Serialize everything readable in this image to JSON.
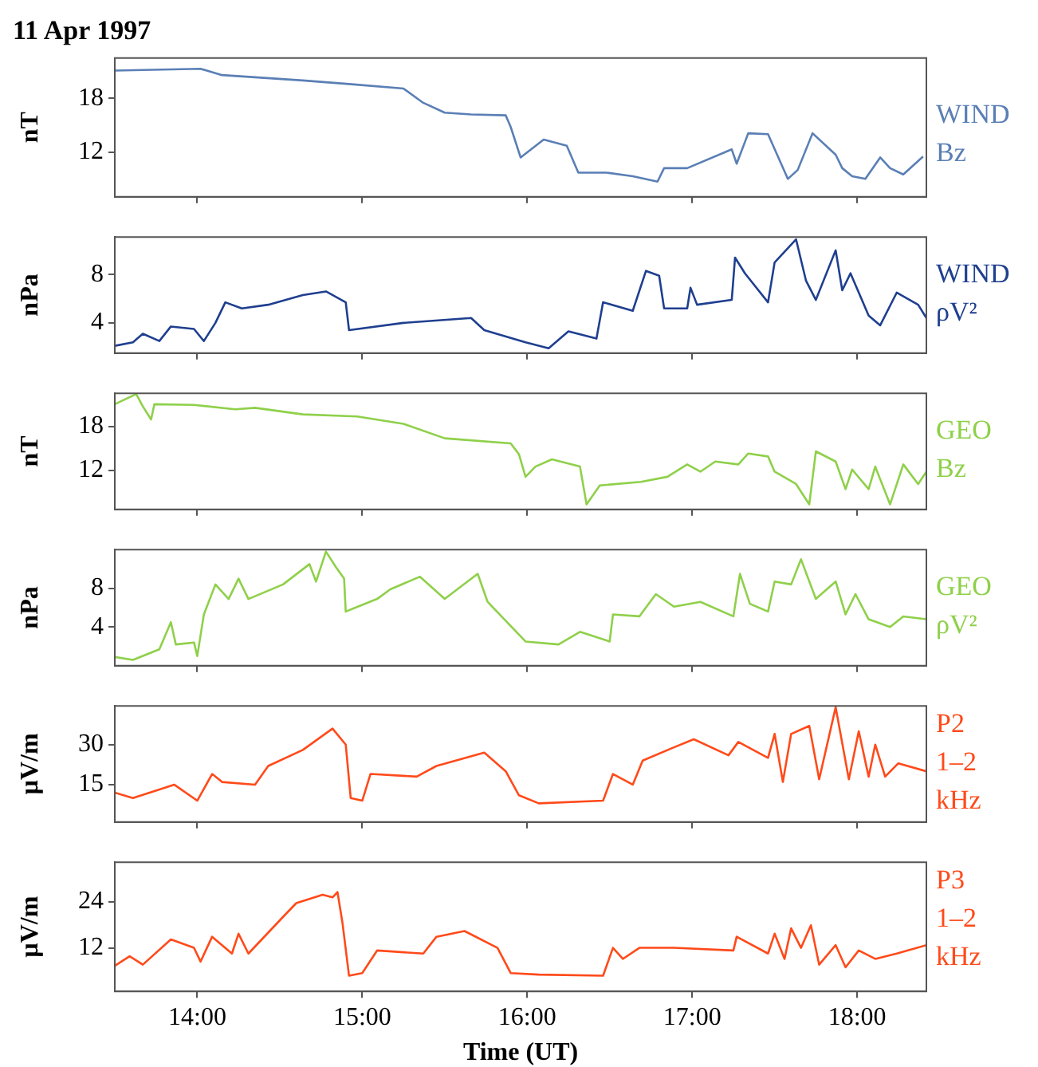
{
  "chart_data": [
    {
      "type": "line",
      "title": "11 Apr 1997",
      "ylabel": "nT",
      "legend": "right",
      "tick_labels": "y",
      "xlim": [
        13.5,
        18.42
      ],
      "xticks": [
        {
          "value": 14,
          "label": null
        },
        {
          "value": 15,
          "label": null
        },
        {
          "value": 16,
          "label": null
        },
        {
          "value": 17,
          "label": null
        },
        {
          "value": 18,
          "label": null
        }
      ],
      "ylim": [
        7,
        22.5
      ],
      "yticks": [
        12,
        18
      ],
      "x": [
        13.5,
        14.02,
        14.15,
        14.64,
        14.92,
        15.25,
        15.37,
        15.5,
        15.66,
        15.87,
        15.9,
        15.96,
        16.1,
        16.24,
        16.31,
        16.48,
        16.64,
        16.79,
        16.83,
        16.97,
        17.24,
        17.27,
        17.34,
        17.46,
        17.58,
        17.64,
        17.73,
        17.87,
        17.91,
        17.97,
        18.05,
        18.14,
        18.2,
        18.28,
        18.4
      ],
      "series": [
        {
          "name": "WIND Bz",
          "color": "#5a7fb5",
          "values": [
            21.1,
            21.3,
            20.6,
            20.0,
            19.6,
            19.1,
            17.5,
            16.4,
            16.2,
            16.1,
            14.8,
            11.4,
            13.4,
            12.7,
            9.7,
            9.7,
            9.3,
            8.7,
            10.2,
            10.2,
            12.3,
            10.7,
            14.1,
            14.0,
            9.0,
            10.0,
            14.1,
            11.7,
            10.2,
            9.3,
            9.0,
            11.4,
            10.2,
            9.5,
            11.5
          ]
        }
      ]
    },
    {
      "type": "line",
      "ylabel": "nPa",
      "legend": "right",
      "tick_labels": "y",
      "xlim": [
        13.5,
        18.42
      ],
      "xticks": [
        {
          "value": 14,
          "label": null
        },
        {
          "value": 15,
          "label": null
        },
        {
          "value": 16,
          "label": null
        },
        {
          "value": 17,
          "label": null
        },
        {
          "value": 18,
          "label": null
        }
      ],
      "ylim": [
        1.5,
        11.1
      ],
      "yticks": [
        4,
        8
      ],
      "x": [
        13.5,
        13.61,
        13.67,
        13.77,
        13.84,
        13.98,
        14.04,
        14.11,
        14.17,
        14.27,
        14.43,
        14.64,
        14.78,
        14.9,
        14.92,
        15.25,
        15.66,
        15.74,
        15.99,
        16.13,
        16.25,
        16.42,
        16.46,
        16.64,
        16.72,
        16.8,
        16.83,
        16.97,
        16.99,
        17.03,
        17.24,
        17.26,
        17.32,
        17.46,
        17.5,
        17.63,
        17.69,
        17.75,
        17.87,
        17.91,
        17.96,
        18.07,
        18.14,
        18.24,
        18.37,
        18.42
      ],
      "series": [
        {
          "name": "WIND ρV²",
          "color": "#1f3f8f",
          "values": [
            2.1,
            2.4,
            3.1,
            2.5,
            3.7,
            3.5,
            2.5,
            4.0,
            5.7,
            5.2,
            5.5,
            6.3,
            6.6,
            5.7,
            3.4,
            4.0,
            4.4,
            3.4,
            2.4,
            1.9,
            3.3,
            2.7,
            5.7,
            5.0,
            8.3,
            7.9,
            5.2,
            5.2,
            6.9,
            5.5,
            5.9,
            9.4,
            8.1,
            5.7,
            9.0,
            10.9,
            7.5,
            5.9,
            10.0,
            6.7,
            8.1,
            4.6,
            3.8,
            6.5,
            5.5,
            4.4
          ]
        }
      ]
    },
    {
      "type": "line",
      "ylabel": "nT",
      "legend": "right",
      "tick_labels": "y",
      "xlim": [
        13.5,
        18.42
      ],
      "xticks": [
        {
          "value": 14,
          "label": null
        },
        {
          "value": 15,
          "label": null
        },
        {
          "value": 16,
          "label": null
        },
        {
          "value": 17,
          "label": null
        },
        {
          "value": 18,
          "label": null
        }
      ],
      "ylim": [
        6.6,
        22.6
      ],
      "yticks": [
        12,
        18
      ],
      "x": [
        13.5,
        13.63,
        13.67,
        13.72,
        13.74,
        13.98,
        14.23,
        14.35,
        14.64,
        14.97,
        15.25,
        15.5,
        15.9,
        15.95,
        15.99,
        16.05,
        16.15,
        16.32,
        16.36,
        16.44,
        16.69,
        16.85,
        16.97,
        17.05,
        17.14,
        17.28,
        17.34,
        17.46,
        17.5,
        17.63,
        17.71,
        17.75,
        17.87,
        17.93,
        17.97,
        18.07,
        18.11,
        18.2,
        18.28,
        18.37,
        18.42
      ],
      "series": [
        {
          "name": "GEO Bz",
          "color": "#8fd04a",
          "values": [
            21.1,
            22.5,
            20.8,
            19.0,
            21.1,
            21.0,
            20.4,
            20.6,
            19.7,
            19.4,
            18.4,
            16.4,
            15.7,
            14.2,
            11.1,
            12.5,
            13.5,
            12.5,
            7.3,
            9.9,
            10.4,
            11.1,
            12.8,
            11.8,
            13.2,
            12.8,
            14.3,
            13.9,
            11.8,
            10.1,
            7.3,
            14.6,
            13.2,
            9.4,
            12.1,
            9.4,
            12.5,
            7.3,
            12.8,
            10.1,
            11.8
          ]
        }
      ]
    },
    {
      "type": "line",
      "ylabel": "nPa",
      "legend": "right",
      "tick_labels": "y",
      "xlim": [
        13.5,
        18.42
      ],
      "xticks": [
        {
          "value": 14,
          "label": null
        },
        {
          "value": 15,
          "label": null
        },
        {
          "value": 16,
          "label": null
        },
        {
          "value": 17,
          "label": null
        },
        {
          "value": 18,
          "label": null
        }
      ],
      "ylim": [
        0,
        12
      ],
      "yticks": [
        4,
        8
      ],
      "x": [
        13.5,
        13.61,
        13.77,
        13.84,
        13.87,
        13.98,
        14.0,
        14.04,
        14.11,
        14.19,
        14.25,
        14.31,
        14.52,
        14.68,
        14.72,
        14.78,
        14.84,
        14.89,
        14.9,
        15.09,
        15.17,
        15.35,
        15.5,
        15.7,
        15.76,
        15.99,
        16.19,
        16.32,
        16.5,
        16.52,
        16.68,
        16.78,
        16.89,
        17.05,
        17.25,
        17.29,
        17.35,
        17.46,
        17.5,
        17.6,
        17.66,
        17.75,
        17.87,
        17.93,
        17.99,
        18.07,
        18.2,
        18.28,
        18.42
      ],
      "series": [
        {
          "name": "GEO ρV²",
          "color": "#8fd04a",
          "values": [
            0.9,
            0.6,
            1.7,
            4.5,
            2.2,
            2.4,
            1.0,
            5.3,
            8.4,
            6.9,
            9.0,
            6.9,
            8.4,
            10.5,
            8.7,
            11.8,
            10.2,
            9.0,
            5.6,
            6.9,
            7.9,
            9.2,
            6.9,
            9.5,
            6.6,
            2.5,
            2.2,
            3.5,
            2.5,
            5.3,
            5.1,
            7.4,
            6.1,
            6.6,
            5.1,
            9.5,
            6.4,
            5.6,
            8.7,
            8.4,
            11.0,
            6.9,
            8.7,
            5.3,
            7.4,
            4.8,
            4.0,
            5.1,
            4.8
          ]
        }
      ]
    },
    {
      "type": "line",
      "ylabel": "µV/m",
      "legend": "right",
      "tick_labels": "y",
      "xlim": [
        13.5,
        18.42
      ],
      "xticks": [
        {
          "value": 14,
          "label": null
        },
        {
          "value": 15,
          "label": null
        },
        {
          "value": 16,
          "label": null
        },
        {
          "value": 17,
          "label": null
        },
        {
          "value": 18,
          "label": null
        }
      ],
      "ylim": [
        1,
        44.5
      ],
      "yticks": [
        15,
        30
      ],
      "x": [
        13.5,
        13.61,
        13.86,
        14.0,
        14.09,
        14.15,
        14.35,
        14.43,
        14.64,
        14.82,
        14.9,
        14.93,
        15.0,
        15.05,
        15.33,
        15.45,
        15.74,
        15.87,
        15.95,
        16.07,
        16.46,
        16.52,
        16.64,
        16.7,
        16.89,
        17.01,
        17.22,
        17.28,
        17.46,
        17.5,
        17.55,
        17.6,
        17.71,
        17.77,
        17.87,
        17.95,
        18.01,
        18.07,
        18.11,
        18.17,
        18.25,
        18.42
      ],
      "series": [
        {
          "name": "P2 1–2 kHz",
          "color": "#ff4a1a",
          "values": [
            12,
            10,
            15,
            9,
            19,
            16,
            15,
            22,
            28,
            36,
            30,
            10,
            9,
            19,
            18,
            22,
            27,
            20,
            11,
            8,
            9,
            19,
            15,
            24,
            29,
            32,
            26,
            31,
            25,
            34,
            16,
            34,
            37,
            17,
            44,
            17,
            35,
            18,
            30,
            18,
            23,
            20
          ]
        }
      ]
    },
    {
      "type": "line",
      "ylabel": "µV/m",
      "xlabel": "Time (UT)",
      "legend": "right",
      "xlim": [
        13.5,
        18.42
      ],
      "xticks": [
        {
          "value": 14,
          "label": "14:00"
        },
        {
          "value": 15,
          "label": "15:00"
        },
        {
          "value": 16,
          "label": "16:00"
        },
        {
          "value": 17,
          "label": "17:00"
        },
        {
          "value": 18,
          "label": "18:00"
        }
      ],
      "ylim": [
        0.6,
        34.4
      ],
      "yticks": [
        12,
        24
      ],
      "x": [
        13.5,
        13.59,
        13.67,
        13.84,
        13.98,
        14.02,
        14.09,
        14.21,
        14.25,
        14.31,
        14.52,
        14.6,
        14.76,
        14.82,
        14.85,
        14.88,
        14.92,
        15.0,
        15.09,
        15.37,
        15.45,
        15.62,
        15.82,
        15.9,
        16.07,
        16.46,
        16.52,
        16.58,
        16.68,
        16.89,
        17.25,
        17.27,
        17.46,
        17.5,
        17.56,
        17.6,
        17.66,
        17.72,
        17.77,
        17.87,
        17.93,
        18.01,
        18.11,
        18.24,
        18.42
      ],
      "series": [
        {
          "name": "P3 1–2 kHz",
          "color": "#ff4a1a",
          "values": [
            7.3,
            9.8,
            7.6,
            14.2,
            12.0,
            8.4,
            14.9,
            10.5,
            15.7,
            10.5,
            20.1,
            23.7,
            25.9,
            25.2,
            26.6,
            18.6,
            4.7,
            5.4,
            11.3,
            10.5,
            14.9,
            16.4,
            12.0,
            5.4,
            5.0,
            4.7,
            12.0,
            9.1,
            12.0,
            12.0,
            11.3,
            14.9,
            10.5,
            15.7,
            9.1,
            17.1,
            12.0,
            17.9,
            7.6,
            12.7,
            6.9,
            11.3,
            9.1,
            10.5,
            12.7
          ]
        }
      ]
    }
  ]
}
